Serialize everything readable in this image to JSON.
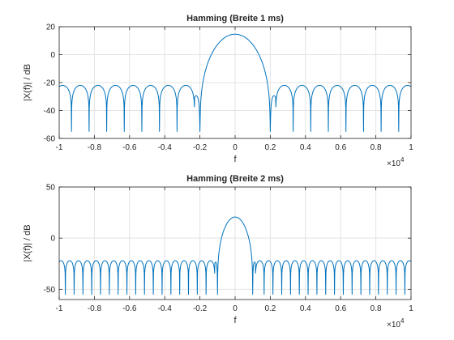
{
  "figure": {
    "background": "#ffffff",
    "line_color": "#0072bd"
  },
  "chart_data": [
    {
      "type": "line",
      "title": "Hamming (Breite 1 ms)",
      "xlabel": "f",
      "ylabel": "|X(f)| / dB",
      "x_exponent_label": "×10",
      "x_exponent": "4",
      "xlim": [
        -10000,
        10000
      ],
      "ylim": [
        -60,
        20
      ],
      "xticks": [
        -10000,
        -8000,
        -6000,
        -4000,
        -2000,
        0,
        2000,
        4000,
        6000,
        8000,
        10000
      ],
      "xtick_labels": [
        "-1",
        "-0.8",
        "-0.6",
        "-0.4",
        "-0.2",
        "0",
        "0.2",
        "0.4",
        "0.6",
        "0.8",
        "1"
      ],
      "yticks": [
        -60,
        -40,
        -20,
        0,
        20
      ],
      "ytick_labels": [
        "-60",
        "-40",
        "-20",
        "0",
        "20"
      ],
      "grid": true,
      "series": [
        {
          "window_width_s": 0.001,
          "peak_db": 20,
          "mainlobe_null_hz": 2300,
          "sidelobe_level_db": -22,
          "sidelobe_period_hz": 1000,
          "null_floor_db": -55
        }
      ]
    },
    {
      "type": "line",
      "title": "Hamming (Breite 2 ms)",
      "xlabel": "f",
      "ylabel": "|X(f)| / dB",
      "x_exponent_label": "×10",
      "x_exponent": "4",
      "xlim": [
        -10000,
        10000
      ],
      "ylim": [
        -60,
        50
      ],
      "xticks": [
        -10000,
        -8000,
        -6000,
        -4000,
        -2000,
        0,
        2000,
        4000,
        6000,
        8000,
        10000
      ],
      "xtick_labels": [
        "-1",
        "-0.8",
        "-0.6",
        "-0.4",
        "-0.2",
        "0",
        "0.2",
        "0.4",
        "0.6",
        "0.8",
        "1"
      ],
      "yticks": [
        -50,
        0,
        50
      ],
      "ytick_labels": [
        "-50",
        "0",
        "50"
      ],
      "grid": true,
      "series": [
        {
          "window_width_s": 0.002,
          "peak_db": 26,
          "mainlobe_null_hz": 1150,
          "sidelobe_level_db": -22,
          "sidelobe_period_hz": 500,
          "null_floor_db": -55
        }
      ]
    }
  ]
}
